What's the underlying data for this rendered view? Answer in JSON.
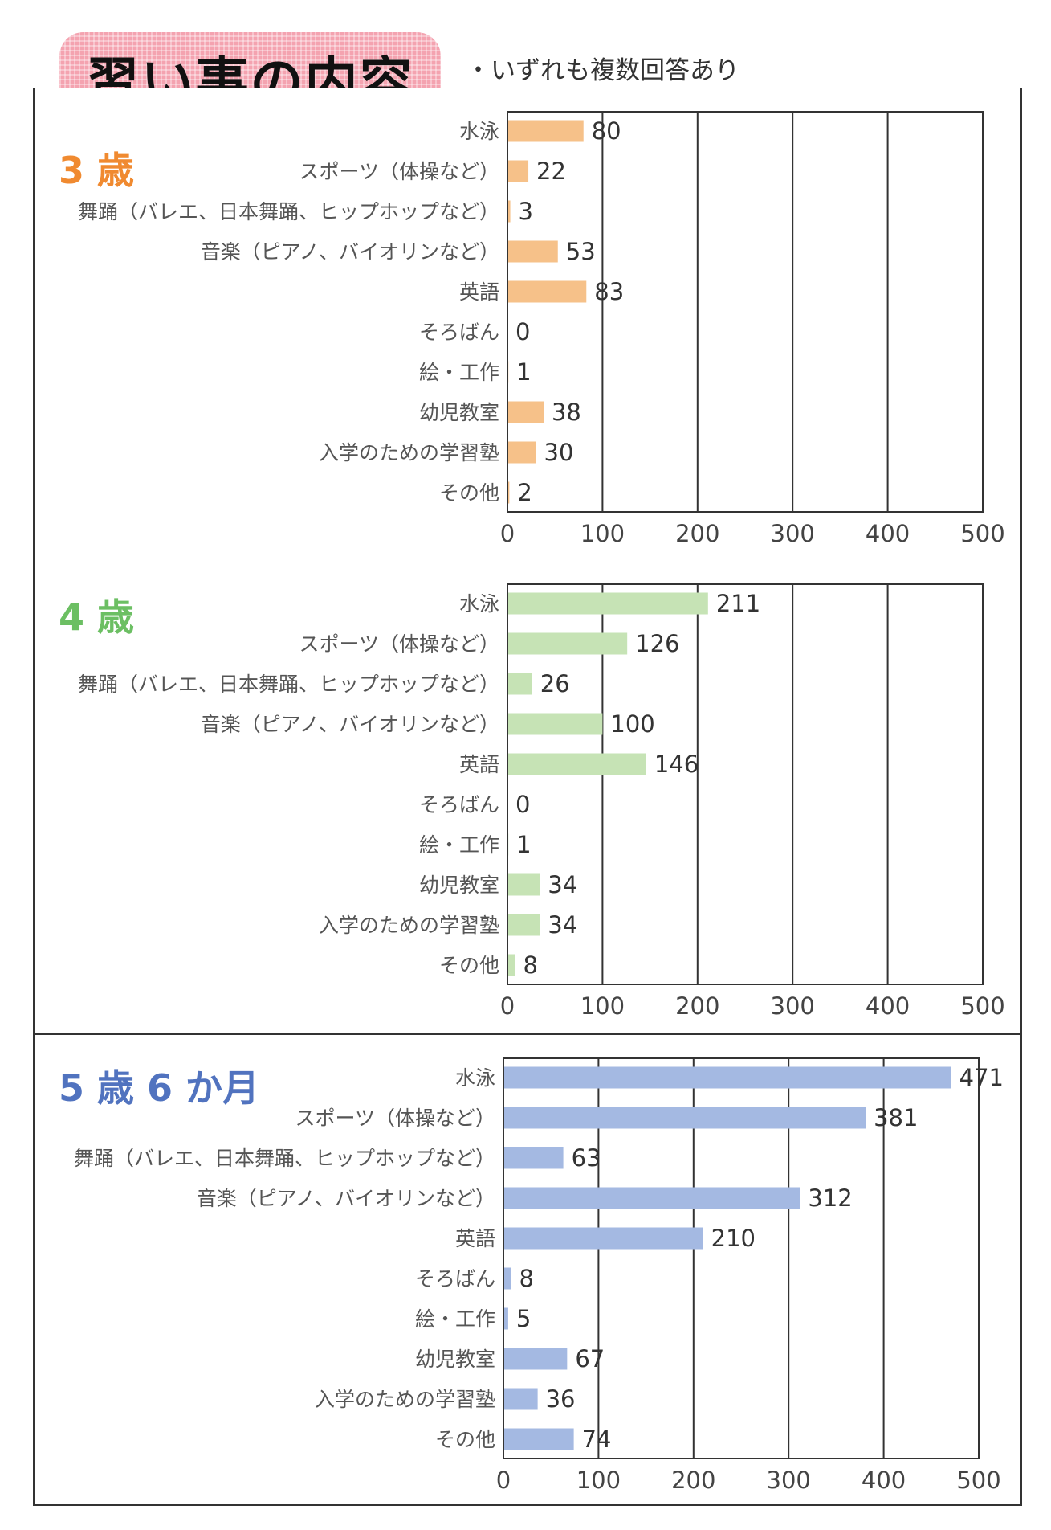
{
  "header": {
    "title": "習い事の内容",
    "note": "・いずれも複数回答あり"
  },
  "colors": {
    "banner": "#f4a3b0",
    "age_3": "#f08a30",
    "age_4": "#6cbf63",
    "age_5": "#5173bf",
    "bar_3": "#f6c189",
    "bar_4": "#c6e3b5",
    "bar_5": "#a4b9e2"
  },
  "chart_data": [
    {
      "type": "bar",
      "orientation": "horizontal",
      "title": "3 歳",
      "categories": [
        "水泳",
        "スポーツ（体操など）",
        "舞踊（バレエ、日本舞踊、ヒップホップなど）",
        "音楽（ピアノ、バイオリンなど）",
        "英語",
        "そろばん",
        "絵・工作",
        "幼児教室",
        "入学のための学習塾",
        "その他"
      ],
      "values": [
        80,
        22,
        3,
        53,
        83,
        0,
        1,
        38,
        30,
        2
      ],
      "xlim": [
        0,
        500
      ],
      "xticks": [
        "0",
        "100",
        "200",
        "300",
        "400",
        "500"
      ],
      "grid": true
    },
    {
      "type": "bar",
      "orientation": "horizontal",
      "title": "4 歳",
      "categories": [
        "水泳",
        "スポーツ（体操など）",
        "舞踊（バレエ、日本舞踊、ヒップホップなど）",
        "音楽（ピアノ、バイオリンなど）",
        "英語",
        "そろばん",
        "絵・工作",
        "幼児教室",
        "入学のための学習塾",
        "その他"
      ],
      "values": [
        211,
        126,
        26,
        100,
        146,
        0,
        1,
        34,
        34,
        8
      ],
      "xlim": [
        0,
        500
      ],
      "xticks": [
        "0",
        "100",
        "200",
        "300",
        "400",
        "500"
      ],
      "grid": true
    },
    {
      "type": "bar",
      "orientation": "horizontal",
      "title": "5 歳 6 か月",
      "categories": [
        "水泳",
        "スポーツ（体操など）",
        "舞踊（バレエ、日本舞踊、ヒップホップなど）",
        "音楽（ピアノ、バイオリンなど）",
        "英語",
        "そろばん",
        "絵・工作",
        "幼児教室",
        "入学のための学習塾",
        "その他"
      ],
      "values": [
        471,
        381,
        63,
        312,
        210,
        8,
        5,
        67,
        36,
        74
      ],
      "xlim": [
        0,
        500
      ],
      "xticks": [
        "0",
        "100",
        "200",
        "300",
        "400",
        "500"
      ],
      "grid": true
    }
  ]
}
